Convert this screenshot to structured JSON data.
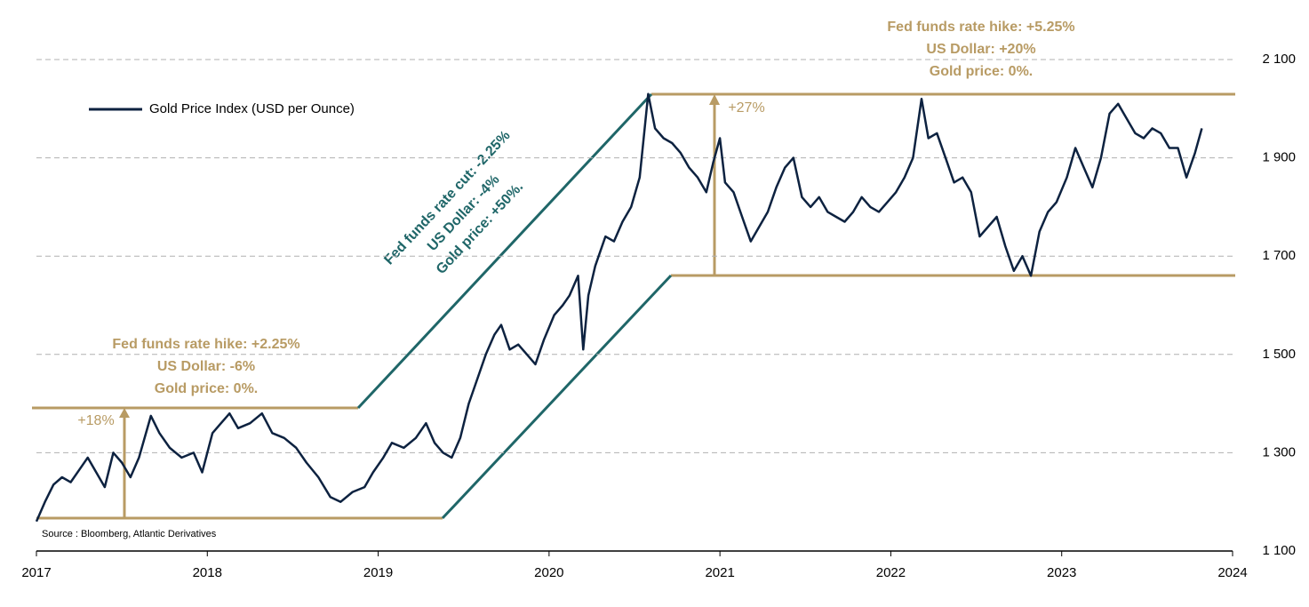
{
  "chart_data": {
    "type": "line",
    "legend": "upper left",
    "source": "Source : Bloomberg, Atlantic Derivatives",
    "annotations": {
      "hike1": [
        "Fed funds rate hike: +2.25%",
        "US Dollar: -6%",
        "Gold price: 0%."
      ],
      "cut": [
        "Fed funds rate cut: -2.25%",
        "US Dollar: -4%",
        "Gold price: +50%."
      ],
      "hike2": [
        "Fed funds rate hike: +5.25%",
        "US Dollar: +20%",
        "Gold price: 0%."
      ],
      "gain1": "+18%",
      "gain2": "+27%"
    },
    "xlim": [
      2017,
      2024
    ],
    "xticks": [
      2017,
      2018,
      2019,
      2020,
      2021,
      2022,
      2023,
      2024
    ],
    "ylim": [
      1100,
      2100
    ],
    "yticks": [
      {
        "value": 1100,
        "label": "1 100"
      },
      {
        "value": 1300,
        "label": "1 300"
      },
      {
        "value": 1500,
        "label": "1 500"
      },
      {
        "value": 1700,
        "label": "1 700"
      },
      {
        "value": 1900,
        "label": "1 900"
      },
      {
        "value": 2100,
        "label": "2 100"
      }
    ],
    "grid": true,
    "x": [
      2017.0,
      2017.05,
      2017.1,
      2017.15,
      2017.2,
      2017.25,
      2017.3,
      2017.35,
      2017.4,
      2017.45,
      2017.5,
      2017.55,
      2017.6,
      2017.67,
      2017.72,
      2017.78,
      2017.85,
      2017.92,
      2017.97,
      2018.03,
      2018.08,
      2018.13,
      2018.18,
      2018.25,
      2018.32,
      2018.38,
      2018.45,
      2018.52,
      2018.58,
      2018.65,
      2018.72,
      2018.78,
      2018.85,
      2018.92,
      2018.97,
      2019.03,
      2019.08,
      2019.15,
      2019.22,
      2019.28,
      2019.33,
      2019.38,
      2019.43,
      2019.48,
      2019.53,
      2019.58,
      2019.63,
      2019.68,
      2019.72,
      2019.77,
      2019.82,
      2019.87,
      2019.92,
      2019.97,
      2020.03,
      2020.08,
      2020.12,
      2020.17,
      2020.2,
      2020.23,
      2020.27,
      2020.33,
      2020.38,
      2020.43,
      2020.48,
      2020.53,
      2020.58,
      2020.62,
      2020.67,
      2020.72,
      2020.77,
      2020.82,
      2020.87,
      2020.92,
      2020.96,
      2021.0,
      2021.03,
      2021.08,
      2021.13,
      2021.18,
      2021.23,
      2021.28,
      2021.33,
      2021.38,
      2021.43,
      2021.48,
      2021.53,
      2021.58,
      2021.63,
      2021.68,
      2021.73,
      2021.78,
      2021.83,
      2021.88,
      2021.93,
      2021.98,
      2022.03,
      2022.08,
      2022.13,
      2022.18,
      2022.22,
      2022.27,
      2022.32,
      2022.37,
      2022.42,
      2022.47,
      2022.52,
      2022.57,
      2022.62,
      2022.67,
      2022.72,
      2022.77,
      2022.82,
      2022.87,
      2022.92,
      2022.97,
      2023.03,
      2023.08,
      2023.13,
      2023.18,
      2023.23,
      2023.28,
      2023.33,
      2023.38,
      2023.43,
      2023.48,
      2023.53,
      2023.58,
      2023.63,
      2023.68,
      2023.73,
      2023.78,
      2023.82
    ],
    "series": [
      {
        "name": "Gold Price Index (USD per Ounce)",
        "color": "#0d2240",
        "values": [
          1160,
          1200,
          1235,
          1250,
          1240,
          1265,
          1290,
          1260,
          1230,
          1300,
          1280,
          1250,
          1290,
          1375,
          1340,
          1310,
          1290,
          1300,
          1260,
          1340,
          1360,
          1380,
          1350,
          1360,
          1380,
          1340,
          1330,
          1310,
          1280,
          1250,
          1210,
          1200,
          1220,
          1230,
          1260,
          1290,
          1320,
          1310,
          1330,
          1360,
          1320,
          1300,
          1290,
          1330,
          1400,
          1450,
          1500,
          1540,
          1560,
          1510,
          1520,
          1500,
          1480,
          1530,
          1580,
          1600,
          1620,
          1660,
          1510,
          1620,
          1680,
          1740,
          1730,
          1770,
          1800,
          1860,
          2030,
          1960,
          1940,
          1930,
          1910,
          1880,
          1860,
          1830,
          1890,
          1940,
          1850,
          1830,
          1780,
          1730,
          1760,
          1790,
          1840,
          1880,
          1900,
          1820,
          1800,
          1820,
          1790,
          1780,
          1770,
          1790,
          1820,
          1800,
          1790,
          1810,
          1830,
          1860,
          1900,
          2020,
          1940,
          1950,
          1900,
          1850,
          1860,
          1830,
          1740,
          1760,
          1780,
          1720,
          1670,
          1700,
          1660,
          1750,
          1790,
          1810,
          1860,
          1920,
          1880,
          1840,
          1900,
          1990,
          2010,
          1980,
          1950,
          1940,
          1960,
          1950,
          1920,
          1920,
          1860,
          1910,
          1960
        ]
      }
    ]
  }
}
